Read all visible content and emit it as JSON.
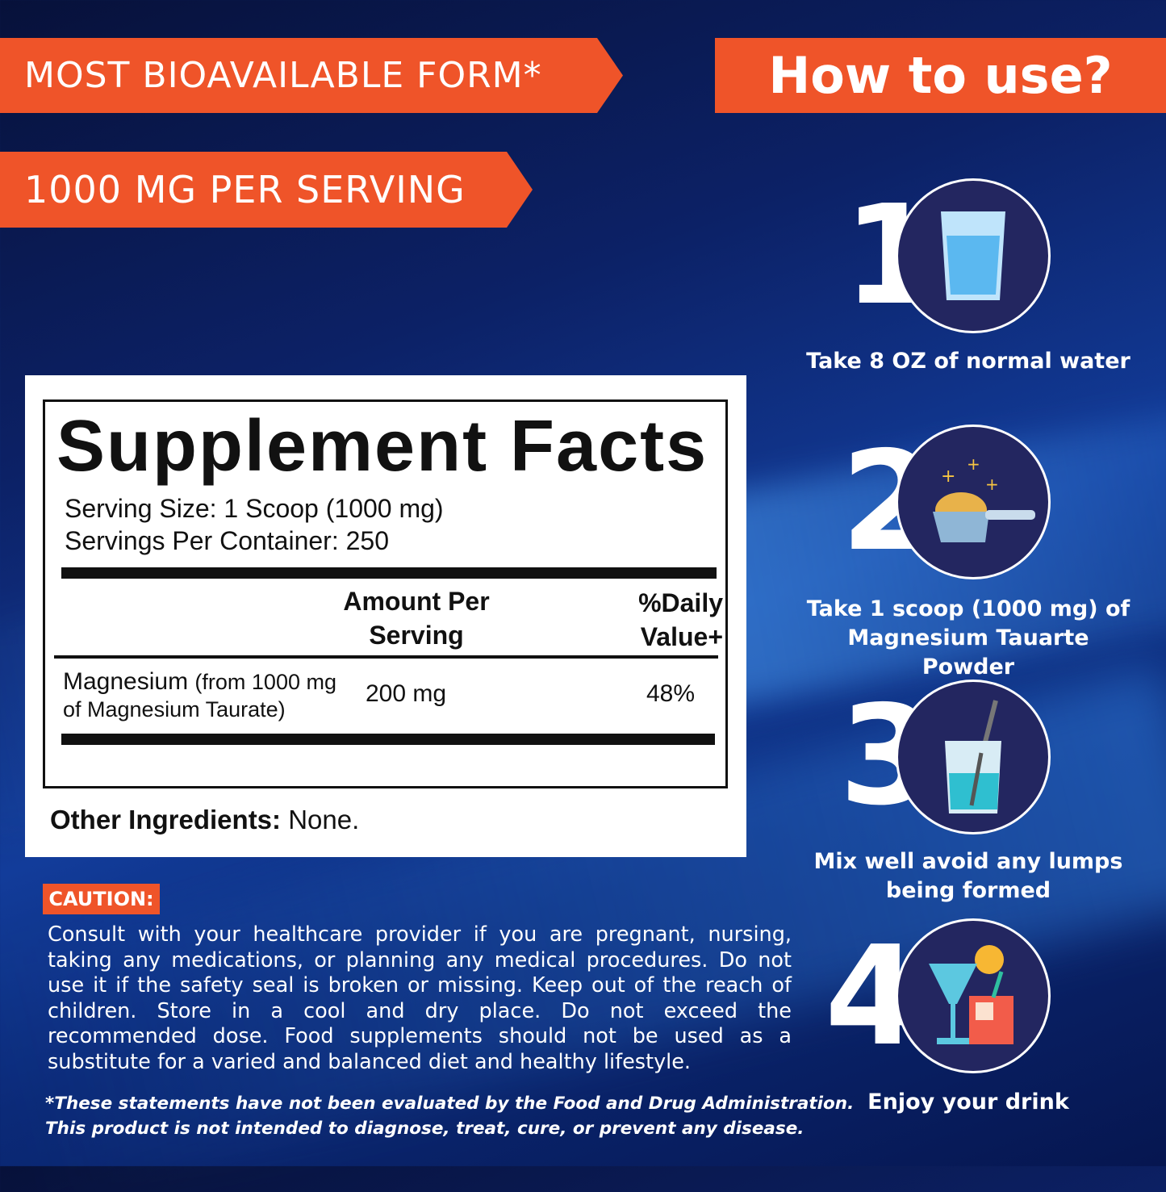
{
  "banners": {
    "bioavailable": "MOST BIOAVAILABLE FORM*",
    "dose": "1000 MG PER SERVING",
    "how_to": "How to use?"
  },
  "facts": {
    "title": "Supplement Facts",
    "serving_size": "Serving Size: 1 Scoop (1000 mg)",
    "servings_per_container": "Servings Per Container: 250",
    "col_amount": "Amount Per Serving",
    "col_dv": "%Daily Value+",
    "rows": [
      {
        "name": "Magnesium",
        "detail": "(from 1000 mg of Magnesium Taurate)",
        "amount": "200 mg",
        "dv": "48%"
      }
    ],
    "other_label": "Other Ingredients:",
    "other_value": "None."
  },
  "caution": {
    "label": "CAUTION:",
    "text": "Consult with your healthcare provider if you are pregnant, nursing, taking any medications, or planning any medical procedures. Do not use it if the safety seal is broken or missing. Keep out of the reach of children. Store in a cool and dry place. Do not exceed the recommended dose. Food supplements should not be used as a substitute for a varied and balanced diet and healthy lifestyle."
  },
  "disclaimer": {
    "line1": "*These statements have not been evaluated by the Food and Drug Administration.",
    "line2": "This product is not intended to diagnose, treat, cure, or prevent any disease."
  },
  "steps": [
    {
      "number": "1",
      "icon": "water-glass-icon",
      "caption": "Take  8 OZ  of normal water"
    },
    {
      "number": "2",
      "icon": "powder-scoop-icon",
      "caption": "Take 1 scoop (1000 mg) of Magnesium Tauarte Powder"
    },
    {
      "number": "3",
      "icon": "mixing-cup-icon",
      "caption": "Mix well avoid any lumps being formed"
    },
    {
      "number": "4",
      "icon": "drinks-icon",
      "caption": "Enjoy your drink"
    }
  ],
  "colors": {
    "accent": "#ef5429",
    "circle": "#232660"
  }
}
